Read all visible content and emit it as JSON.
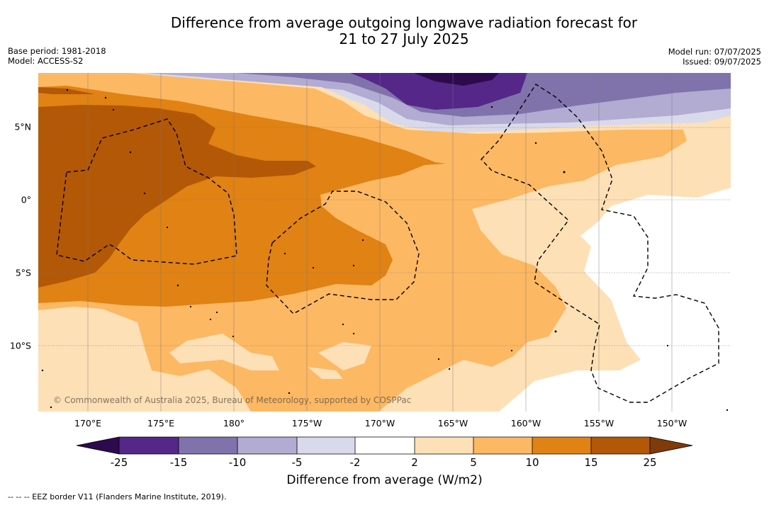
{
  "title": {
    "line1": "Difference from average outgoing longwave radiation forecast for",
    "line2": "21 to 27 July 2025"
  },
  "meta_left": {
    "base_period": "Base period: 1981-2018",
    "model": "Model: ACCESS-S2"
  },
  "meta_right": {
    "model_run": "Model run: 07/07/2025",
    "issued": "Issued: 09/07/2025"
  },
  "map": {
    "lon_labels": [
      "170°E",
      "175°E",
      "180°",
      "175°W",
      "170°W",
      "165°W",
      "160°W",
      "155°W",
      "150°W"
    ],
    "lat_labels": [
      "5°N",
      "0°",
      "5°S",
      "10°S"
    ],
    "copyright": "© Commonwealth of Australia 2025, Bureau of Meteorology, supported by COSPPac",
    "colors": {
      "lt_neg25": "#2d0a4e",
      "neg25_neg15": "#542788",
      "neg15_neg10": "#8073ac",
      "neg10_neg5": "#b2abd2",
      "neg5_neg2": "#d8daeb",
      "neg2_2": "#ffffff",
      "p2_5": "#fee0b6",
      "p5_10": "#fdb863",
      "p10_15": "#e08214",
      "p15_25": "#b35806",
      "gt_25": "#7f3b08"
    }
  },
  "colorbar": {
    "ticks": [
      "-25",
      "-15",
      "-10",
      "-5",
      "-2",
      "2",
      "5",
      "10",
      "15",
      "25"
    ],
    "label": "Difference from average (W/m2)"
  },
  "footnote": "--  --  -- EEZ border V11 (Flanders Marine Institute, 2019)."
}
